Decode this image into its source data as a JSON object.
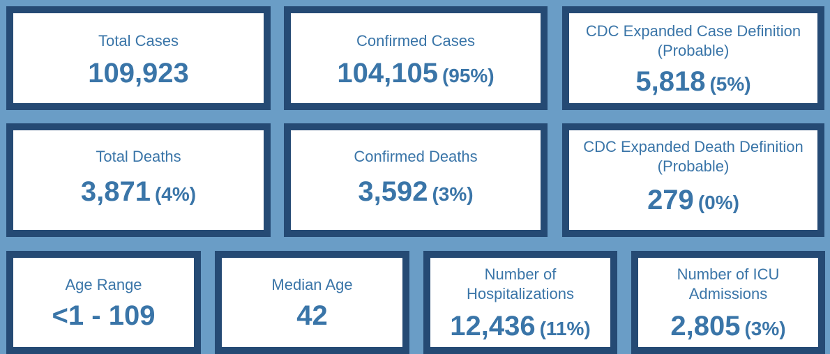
{
  "row1": {
    "total_cases": {
      "label": "Total Cases",
      "value": "109,923"
    },
    "confirmed_cases": {
      "label": "Confirmed Cases",
      "value": "104,105",
      "pct": "(95%)"
    },
    "probable_cases": {
      "label_line1": "CDC Expanded Case Definition",
      "label_line2": "(Probable)",
      "value": "5,818",
      "pct": "(5%)"
    }
  },
  "row2": {
    "total_deaths": {
      "label": "Total Deaths",
      "value": "3,871",
      "pct": "(4%)"
    },
    "confirmed_deaths": {
      "label": "Confirmed Deaths",
      "value": "3,592",
      "pct": "(3%)"
    },
    "probable_deaths": {
      "label_line1": "CDC Expanded Death Definition",
      "label_line2": "(Probable)",
      "value": "279",
      "pct": "(0%)"
    }
  },
  "row3": {
    "age_range": {
      "label": "Age Range",
      "value": "<1 - 109"
    },
    "median_age": {
      "label": "Median Age",
      "value": "42"
    },
    "hospitalizations": {
      "label_line1": "Number of",
      "label_line2": "Hospitalizations",
      "value": "12,436",
      "pct": "(11%)"
    },
    "icu": {
      "label_line1": "Number of ICU",
      "label_line2": "Admissions",
      "value": "2,805",
      "pct": "(3%)"
    }
  },
  "colors": {
    "background": "#6a9dc6",
    "border": "#254a74",
    "text": "#3a75a8",
    "card": "#ffffff"
  }
}
